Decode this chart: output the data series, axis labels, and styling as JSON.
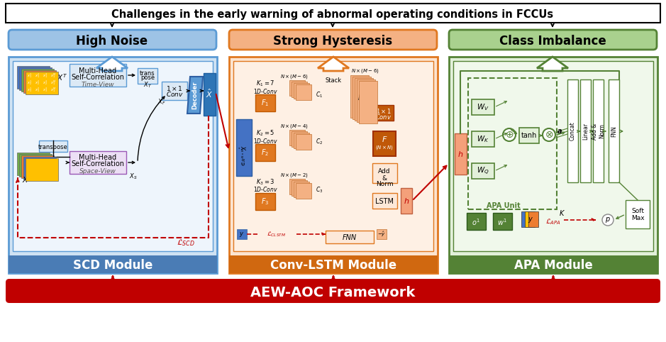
{
  "title": "Challenges in the early warning of abnormal operating conditions in FCCUs",
  "framework_label": "AEW-AOC Framework",
  "module_labels": [
    "SCD Module",
    "Conv-LSTM Module",
    "APA Module"
  ],
  "challenge_labels": [
    "High Noise",
    "Strong Hysteresis",
    "Class Imbalance"
  ],
  "bg_color": "#ffffff",
  "scd_bg": "#cfe2f3",
  "scd_border": "#5b9bd5",
  "scd_label_bg": "#4a7cb5",
  "convlstm_bg": "#fce4d0",
  "convlstm_border": "#e07820",
  "convlstm_label_bg": "#d06810",
  "apa_bg": "#e2f0d9",
  "apa_border": "#548235",
  "apa_label_bg": "#548235",
  "noise_color": "#9dc3e6",
  "hysteresis_color": "#f4b183",
  "imbalance_color": "#a9d18e",
  "noise_border": "#5b9bd5",
  "hysteresis_border": "#e07820",
  "imbalance_border": "#548235",
  "framework_color": "#c00000",
  "red_color": "#c00000",
  "blue_color": "#4472c4",
  "orange_color": "#c55a11",
  "green_color": "#548235"
}
